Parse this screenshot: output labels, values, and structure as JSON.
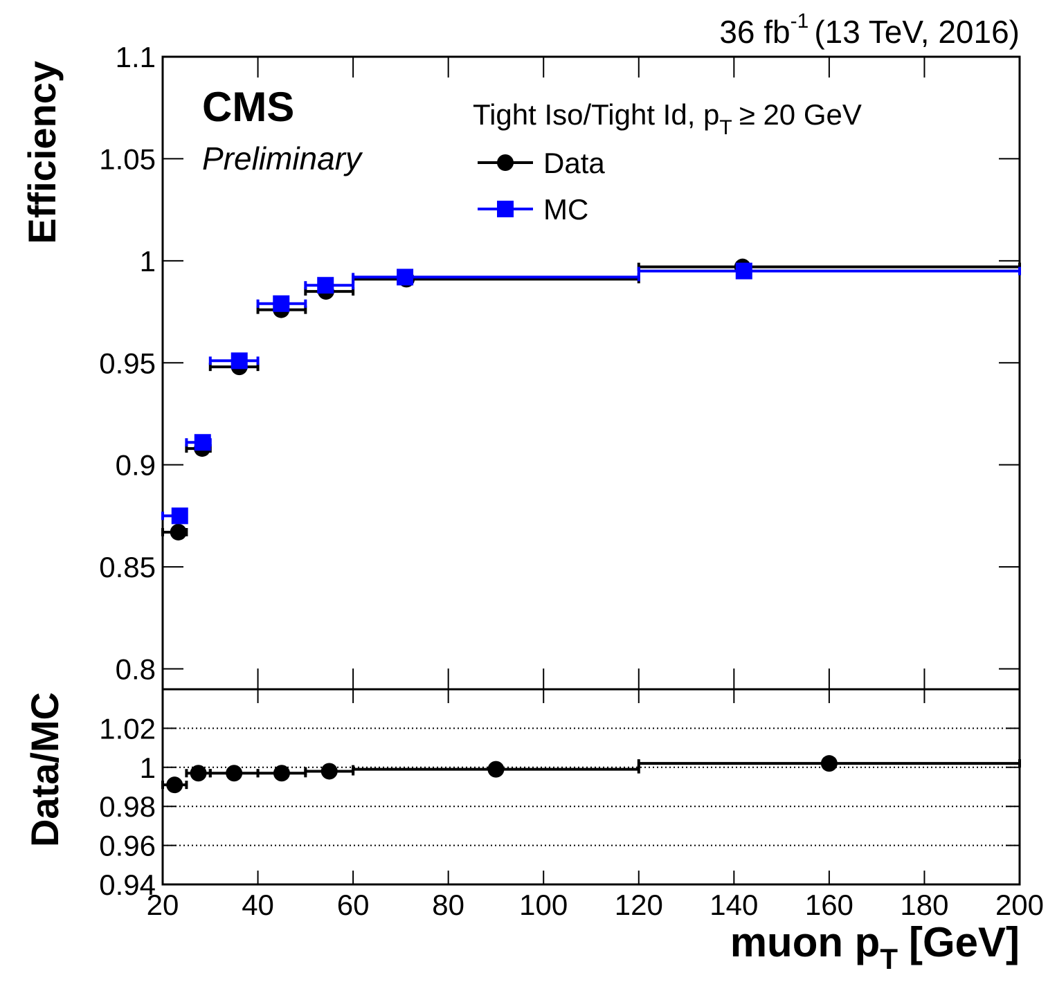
{
  "chart_data": [
    {
      "type": "scatter",
      "lumi": [
        "36 fb",
        "-1",
        "(13 TeV, 2016)"
      ],
      "label": "CMS",
      "sublabel": "Preliminary",
      "legend_title": [
        "Tight Iso/Tight Id, p",
        "T",
        "≥ 20 GeV"
      ],
      "ylabel": "Efficiency",
      "bins": [
        20,
        25,
        30,
        40,
        50,
        60,
        120,
        200
      ],
      "series": [
        {
          "name": "Data",
          "color": "#000000",
          "marker": "circle",
          "x": [
            23.3,
            28.3,
            36.1,
            44.9,
            54.3,
            71.2,
            141.8
          ],
          "values": [
            0.867,
            0.908,
            0.948,
            0.976,
            0.985,
            0.991,
            0.997
          ]
        },
        {
          "name": "MC",
          "color": "#0000ff",
          "marker": "square",
          "x": [
            23.6,
            28.4,
            36.1,
            44.9,
            54.2,
            70.9,
            142.1
          ],
          "values": [
            0.875,
            0.911,
            0.951,
            0.979,
            0.988,
            0.992,
            0.995
          ]
        }
      ],
      "xlim": [
        20,
        200
      ],
      "xticks": [
        20,
        40,
        60,
        80,
        100,
        120,
        140,
        160,
        180,
        200
      ],
      "ylim": [
        0.79,
        1.1
      ],
      "yticks": [
        0.8,
        0.85,
        0.9,
        0.95,
        1,
        1.05,
        1.1
      ]
    },
    {
      "type": "scatter",
      "ylabel": "Data/MC",
      "xlabel": [
        "muon p",
        "T",
        "[GeV]"
      ],
      "bins": [
        20,
        25,
        30,
        40,
        50,
        60,
        120,
        200
      ],
      "color": "#000000",
      "x": [
        22.5,
        27.5,
        35,
        45,
        55,
        90,
        160
      ],
      "values": [
        0.991,
        0.997,
        0.997,
        0.997,
        0.998,
        0.999,
        1.002
      ],
      "xlim": [
        20,
        200
      ],
      "xticks": [
        20,
        40,
        60,
        80,
        100,
        120,
        140,
        160,
        180,
        200
      ],
      "ylim": [
        0.94,
        1.04
      ],
      "yticks": [
        0.94,
        0.96,
        0.98,
        1,
        1.02
      ],
      "grid": true
    }
  ]
}
